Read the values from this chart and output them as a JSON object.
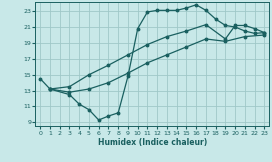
{
  "xlabel": "Humidex (Indice chaleur)",
  "bg_color": "#c8e8e8",
  "grid_color": "#a0c8c8",
  "line_color": "#1a6060",
  "xlim": [
    -0.5,
    23.5
  ],
  "ylim": [
    8.5,
    24.2
  ],
  "xticks": [
    0,
    1,
    2,
    3,
    4,
    5,
    6,
    7,
    8,
    9,
    10,
    11,
    12,
    13,
    14,
    15,
    16,
    17,
    18,
    19,
    20,
    21,
    22,
    23
  ],
  "yticks": [
    9,
    11,
    13,
    15,
    17,
    19,
    21,
    23
  ],
  "line1_x": [
    0,
    1,
    3,
    4,
    5,
    6,
    7,
    8,
    9,
    10,
    11,
    12,
    13,
    14,
    15,
    16,
    17,
    18,
    19,
    20,
    21,
    22,
    23
  ],
  "line1_y": [
    14.5,
    13.2,
    12.5,
    11.3,
    10.6,
    9.3,
    9.8,
    10.2,
    14.8,
    20.8,
    22.9,
    23.1,
    23.1,
    23.1,
    23.4,
    23.8,
    23.1,
    22.0,
    21.2,
    21.0,
    20.5,
    20.2,
    20.3
  ],
  "line2_x": [
    1,
    3,
    5,
    7,
    9,
    11,
    13,
    15,
    17,
    19,
    20,
    21,
    22,
    23
  ],
  "line2_y": [
    13.2,
    13.5,
    15.0,
    16.2,
    17.5,
    18.8,
    19.8,
    20.5,
    21.3,
    19.5,
    21.2,
    21.2,
    20.8,
    20.3
  ],
  "line3_x": [
    1,
    3,
    5,
    7,
    9,
    11,
    13,
    15,
    17,
    19,
    21,
    23
  ],
  "line3_y": [
    13.2,
    12.8,
    13.2,
    14.0,
    15.2,
    16.5,
    17.5,
    18.5,
    19.5,
    19.2,
    19.8,
    20.0
  ]
}
